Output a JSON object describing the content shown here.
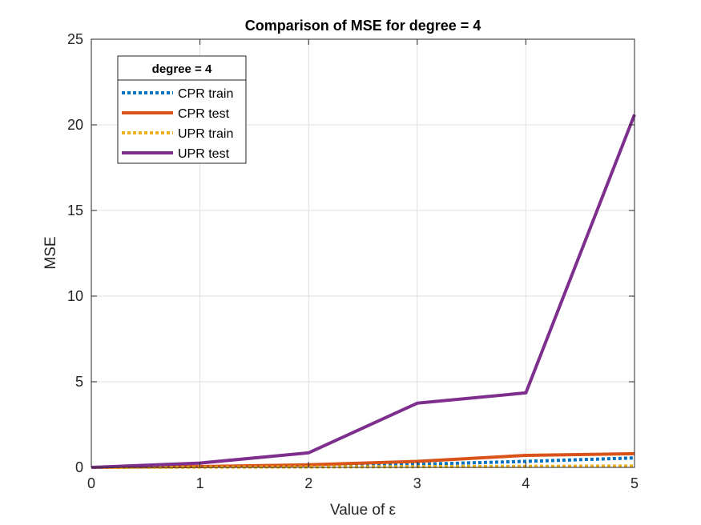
{
  "chart_data": {
    "type": "line",
    "title": "Comparison of MSE for degree = 4",
    "xlabel": "Value of ε",
    "ylabel": "MSE",
    "xlim": [
      0,
      5
    ],
    "ylim": [
      0,
      25
    ],
    "xticks": [
      0,
      1,
      2,
      3,
      4,
      5
    ],
    "yticks": [
      0,
      5,
      10,
      15,
      20,
      25
    ],
    "grid": true,
    "legend_title": "degree = 4",
    "legend_position": "top-left",
    "x": [
      0,
      1,
      2,
      3,
      4,
      5
    ],
    "series": [
      {
        "name": "CPR train",
        "values": [
          0,
          0.03,
          0.08,
          0.18,
          0.35,
          0.55
        ],
        "color": "#0072BD",
        "dash": "dotted"
      },
      {
        "name": "CPR test",
        "values": [
          0,
          0.05,
          0.15,
          0.35,
          0.7,
          0.8
        ],
        "color": "#D95319",
        "dash": "solid"
      },
      {
        "name": "UPR train",
        "values": [
          0,
          0.01,
          0.02,
          0.04,
          0.06,
          0.08
        ],
        "color": "#EDB120",
        "dash": "dotted"
      },
      {
        "name": "UPR test",
        "values": [
          0,
          0.25,
          0.85,
          3.75,
          4.35,
          20.6
        ],
        "color": "#7E2F8E",
        "dash": "solid"
      }
    ]
  }
}
